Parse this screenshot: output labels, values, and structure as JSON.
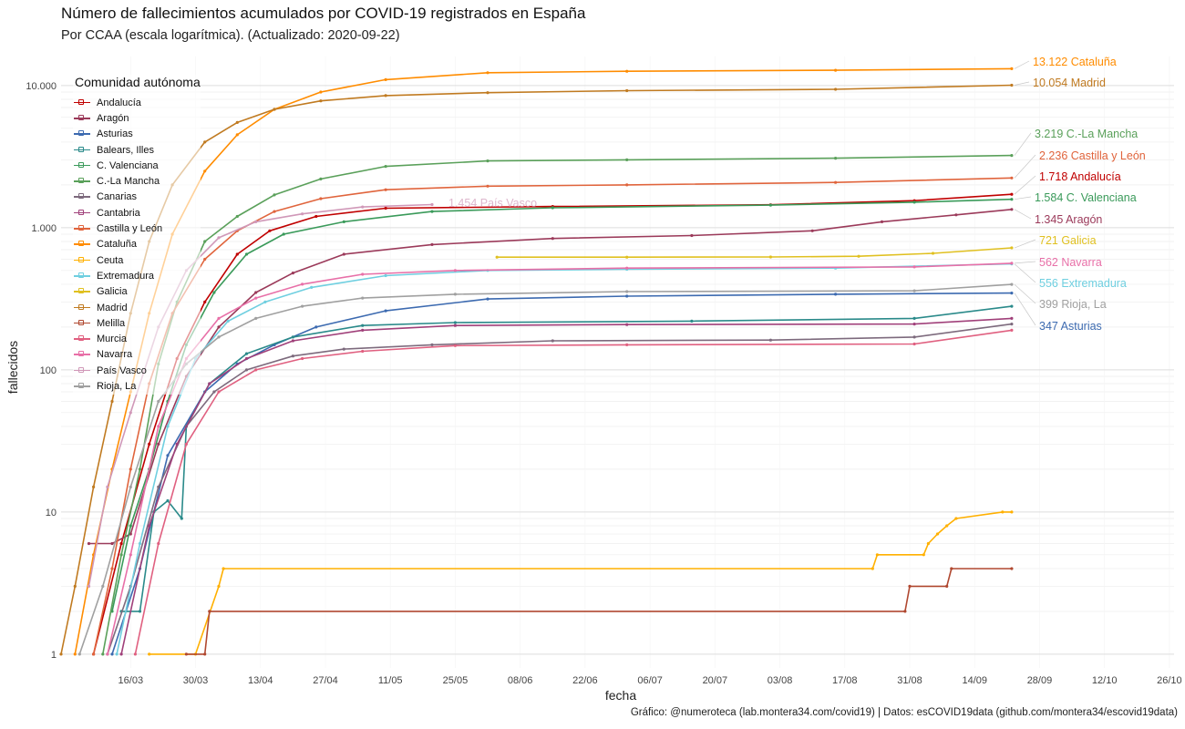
{
  "chart_data": {
    "type": "line",
    "title": "Número de fallecimientos acumulados por COVID-19 registrados en España",
    "subtitle": "Por CCAA (escala logarítmica). (Actualizado: 2020-09-22)",
    "xlabel": "fecha",
    "ylabel": "fallecidos",
    "caption": "Gráfico: @numeroteca (lab.montera34.com/covid19) | Datos: esCOVID19data (github.com/montera34/escovid19data)",
    "y_scale": "log10",
    "ylim": [
      0.8,
      16000
    ],
    "xlim": [
      "2020-03-01",
      "2020-10-27"
    ],
    "grid": true,
    "y_ticks": [
      {
        "value": 1,
        "label": "1"
      },
      {
        "value": 10,
        "label": "10"
      },
      {
        "value": 100,
        "label": "100"
      },
      {
        "value": 1000,
        "label": "1.000"
      },
      {
        "value": 10000,
        "label": "10.000"
      }
    ],
    "x_ticks": [
      {
        "date": "2020-03-16",
        "label": "16/03"
      },
      {
        "date": "2020-03-30",
        "label": "30/03"
      },
      {
        "date": "2020-04-13",
        "label": "13/04"
      },
      {
        "date": "2020-04-27",
        "label": "27/04"
      },
      {
        "date": "2020-05-11",
        "label": "11/05"
      },
      {
        "date": "2020-05-25",
        "label": "25/05"
      },
      {
        "date": "2020-06-08",
        "label": "08/06"
      },
      {
        "date": "2020-06-22",
        "label": "22/06"
      },
      {
        "date": "2020-07-06",
        "label": "06/07"
      },
      {
        "date": "2020-07-20",
        "label": "20/07"
      },
      {
        "date": "2020-08-03",
        "label": "03/08"
      },
      {
        "date": "2020-08-17",
        "label": "17/08"
      },
      {
        "date": "2020-08-31",
        "label": "31/08"
      },
      {
        "date": "2020-09-14",
        "label": "14/09"
      },
      {
        "date": "2020-09-28",
        "label": "28/09"
      },
      {
        "date": "2020-10-12",
        "label": "12/10"
      },
      {
        "date": "2020-10-26",
        "label": "26/10"
      }
    ],
    "legend_title": "Comunidad autónoma",
    "legend_position": "top-left",
    "series": [
      {
        "name": "Andalucía",
        "color": "#c00000",
        "label": "1.718 Andalucía",
        "x": [
          "2020-03-08",
          "2020-03-14",
          "2020-03-20",
          "2020-03-26",
          "2020-04-01",
          "2020-04-08",
          "2020-04-15",
          "2020-04-25",
          "2020-05-10",
          "2020-06-15",
          "2020-08-01",
          "2020-09-01",
          "2020-09-22"
        ],
        "y": [
          1,
          6,
          30,
          120,
          300,
          650,
          950,
          1200,
          1370,
          1410,
          1450,
          1550,
          1718
        ]
      },
      {
        "name": "Aragón",
        "color": "#9b3a5a",
        "label": "1.345 Aragón",
        "x": [
          "2020-03-07",
          "2020-03-12",
          "2020-03-16",
          "2020-03-22",
          "2020-03-28",
          "2020-04-04",
          "2020-04-12",
          "2020-04-20",
          "2020-05-01",
          "2020-05-20",
          "2020-06-15",
          "2020-07-15",
          "2020-08-10",
          "2020-08-25",
          "2020-09-10",
          "2020-09-22"
        ],
        "y": [
          6,
          6,
          7,
          30,
          90,
          200,
          350,
          480,
          650,
          760,
          840,
          880,
          950,
          1100,
          1230,
          1345
        ]
      },
      {
        "name": "Asturias",
        "color": "#3c6ab0",
        "label": "347 Asturias",
        "x": [
          "2020-03-12",
          "2020-03-18",
          "2020-03-24",
          "2020-04-01",
          "2020-04-08",
          "2020-04-16",
          "2020-04-25",
          "2020-05-10",
          "2020-06-01",
          "2020-07-01",
          "2020-08-15",
          "2020-09-22"
        ],
        "y": [
          1,
          4,
          25,
          70,
          110,
          150,
          200,
          260,
          315,
          330,
          340,
          347
        ]
      },
      {
        "name": "Balears, Illes",
        "color": "#2a8a8a",
        "label": "",
        "x": [
          "2020-03-14",
          "2020-03-18",
          "2020-03-21",
          "2020-03-24",
          "2020-03-27",
          "2020-03-28",
          "2020-04-02",
          "2020-04-10",
          "2020-04-20",
          "2020-05-05",
          "2020-05-25",
          "2020-07-15",
          "2020-09-01",
          "2020-09-22"
        ],
        "y": [
          2,
          2,
          10,
          12,
          9,
          40,
          80,
          130,
          170,
          205,
          215,
          220,
          230,
          280
        ]
      },
      {
        "name": "C. Valenciana",
        "color": "#3a9a5a",
        "label": "1.584 C. Valenciana",
        "x": [
          "2020-03-12",
          "2020-03-16",
          "2020-03-20",
          "2020-03-24",
          "2020-03-28",
          "2020-04-03",
          "2020-04-10",
          "2020-04-18",
          "2020-05-01",
          "2020-05-20",
          "2020-06-15",
          "2020-08-01",
          "2020-09-01",
          "2020-09-22"
        ],
        "y": [
          2,
          8,
          20,
          60,
          150,
          350,
          650,
          900,
          1100,
          1300,
          1380,
          1440,
          1510,
          1584
        ]
      },
      {
        "name": "C.-La Mancha",
        "color": "#5aa05a",
        "label": "3.219 C.-La Mancha",
        "x": [
          "2020-03-10",
          "2020-03-14",
          "2020-03-18",
          "2020-03-22",
          "2020-03-26",
          "2020-04-01",
          "2020-04-08",
          "2020-04-16",
          "2020-04-26",
          "2020-05-10",
          "2020-06-01",
          "2020-07-01",
          "2020-08-15",
          "2020-09-22"
        ],
        "y": [
          1,
          5,
          20,
          110,
          300,
          800,
          1200,
          1700,
          2200,
          2700,
          2950,
          3000,
          3080,
          3219
        ]
      },
      {
        "name": "Canarias",
        "color": "#7d6a7d",
        "label": "",
        "x": [
          "2020-03-11",
          "2020-03-16",
          "2020-03-22",
          "2020-03-28",
          "2020-04-03",
          "2020-04-10",
          "2020-04-20",
          "2020-05-01",
          "2020-05-20",
          "2020-06-15",
          "2020-08-01",
          "2020-09-01",
          "2020-09-22"
        ],
        "y": [
          1,
          3,
          15,
          40,
          70,
          100,
          125,
          140,
          150,
          160,
          162,
          170,
          210
        ]
      },
      {
        "name": "Cantabria",
        "color": "#a0407a",
        "label": "",
        "x": [
          "2020-03-14",
          "2020-03-20",
          "2020-03-26",
          "2020-04-02",
          "2020-04-10",
          "2020-04-20",
          "2020-05-05",
          "2020-05-25",
          "2020-07-01",
          "2020-09-01",
          "2020-09-22"
        ],
        "y": [
          1,
          8,
          30,
          80,
          120,
          160,
          190,
          205,
          208,
          210,
          230
        ]
      },
      {
        "name": "Castilla y León",
        "color": "#e0643c",
        "label": "2.236 Castilla y León",
        "x": [
          "2020-03-08",
          "2020-03-12",
          "2020-03-16",
          "2020-03-20",
          "2020-03-25",
          "2020-04-01",
          "2020-04-08",
          "2020-04-16",
          "2020-04-26",
          "2020-05-10",
          "2020-06-01",
          "2020-07-01",
          "2020-08-15",
          "2020-09-22"
        ],
        "y": [
          1,
          4,
          20,
          80,
          250,
          600,
          950,
          1300,
          1600,
          1850,
          1960,
          2000,
          2080,
          2236
        ]
      },
      {
        "name": "Cataluña",
        "color": "#ff8c00",
        "label": "13.122 Cataluña",
        "x": [
          "2020-03-04",
          "2020-03-08",
          "2020-03-12",
          "2020-03-16",
          "2020-03-20",
          "2020-03-25",
          "2020-04-01",
          "2020-04-08",
          "2020-04-16",
          "2020-04-26",
          "2020-05-10",
          "2020-06-01",
          "2020-07-01",
          "2020-08-15",
          "2020-09-22"
        ],
        "y": [
          1,
          5,
          20,
          70,
          250,
          900,
          2500,
          4500,
          6800,
          9000,
          11000,
          12300,
          12600,
          12800,
          13122
        ]
      },
      {
        "name": "Ceuta",
        "color": "#ffb000",
        "label": "",
        "x": [
          "2020-03-20",
          "2020-03-30",
          "2020-04-04",
          "2020-04-05",
          "2020-08-23",
          "2020-08-24",
          "2020-09-03",
          "2020-09-04",
          "2020-09-06",
          "2020-09-08",
          "2020-09-10",
          "2020-09-20",
          "2020-09-22"
        ],
        "y": [
          1,
          1,
          3,
          4,
          4,
          5,
          5,
          6,
          7,
          8,
          9,
          10,
          10
        ]
      },
      {
        "name": "Extremadura",
        "color": "#6fcfe0",
        "label": "556 Extremadura",
        "x": [
          "2020-03-13",
          "2020-03-18",
          "2020-03-24",
          "2020-03-30",
          "2020-04-06",
          "2020-04-14",
          "2020-04-24",
          "2020-05-10",
          "2020-06-01",
          "2020-07-01",
          "2020-08-15",
          "2020-09-22"
        ],
        "y": [
          1,
          6,
          40,
          120,
          220,
          300,
          380,
          460,
          500,
          510,
          520,
          556
        ]
      },
      {
        "name": "Galicia",
        "color": "#e0c020",
        "label": "721 Galicia",
        "x": [
          "2020-06-03",
          "2020-07-01",
          "2020-08-01",
          "2020-08-20",
          "2020-09-05",
          "2020-09-22"
        ],
        "y": [
          620,
          620,
          622,
          630,
          660,
          721
        ]
      },
      {
        "name": "Madrid",
        "color": "#c07a20",
        "label": "10.054 Madrid",
        "x": [
          "2020-03-01",
          "2020-03-04",
          "2020-03-08",
          "2020-03-12",
          "2020-03-16",
          "2020-03-20",
          "2020-03-25",
          "2020-04-01",
          "2020-04-08",
          "2020-04-16",
          "2020-04-26",
          "2020-05-10",
          "2020-06-01",
          "2020-07-01",
          "2020-08-15",
          "2020-09-22"
        ],
        "y": [
          1,
          3,
          15,
          60,
          250,
          800,
          2000,
          4000,
          5500,
          6800,
          7800,
          8500,
          8900,
          9200,
          9400,
          10054
        ]
      },
      {
        "name": "Melilla",
        "color": "#b04830",
        "label": "",
        "x": [
          "2020-03-28",
          "2020-04-01",
          "2020-04-02",
          "2020-08-30",
          "2020-08-31",
          "2020-09-08",
          "2020-09-09",
          "2020-09-22"
        ],
        "y": [
          1,
          1,
          2,
          2,
          3,
          3,
          4,
          4
        ]
      },
      {
        "name": "Murcia",
        "color": "#e06080",
        "label": "",
        "x": [
          "2020-03-17",
          "2020-03-22",
          "2020-03-28",
          "2020-04-04",
          "2020-04-12",
          "2020-04-22",
          "2020-05-05",
          "2020-05-25",
          "2020-07-01",
          "2020-09-01",
          "2020-09-22"
        ],
        "y": [
          1,
          6,
          30,
          70,
          100,
          120,
          135,
          148,
          150,
          152,
          190
        ]
      },
      {
        "name": "Navarra",
        "color": "#e870a8",
        "label": "562 Navarra",
        "x": [
          "2020-03-11",
          "2020-03-16",
          "2020-03-22",
          "2020-03-28",
          "2020-04-04",
          "2020-04-12",
          "2020-04-22",
          "2020-05-05",
          "2020-05-25",
          "2020-07-01",
          "2020-09-01",
          "2020-09-22"
        ],
        "y": [
          1,
          5,
          40,
          120,
          230,
          320,
          400,
          470,
          500,
          520,
          530,
          562
        ]
      },
      {
        "name": "País Vasco",
        "color": "#d098b8",
        "label": "1.454 País Vasco",
        "x": [
          "2020-03-07",
          "2020-03-11",
          "2020-03-16",
          "2020-03-22",
          "2020-03-28",
          "2020-04-04",
          "2020-04-12",
          "2020-04-22",
          "2020-05-05",
          "2020-05-20"
        ],
        "y": [
          3,
          15,
          50,
          200,
          500,
          850,
          1100,
          1250,
          1400,
          1454
        ]
      },
      {
        "name": "Rioja, La",
        "color": "#a0a0a0",
        "label": "399 Rioja, La",
        "x": [
          "2020-03-05",
          "2020-03-10",
          "2020-03-16",
          "2020-03-22",
          "2020-03-28",
          "2020-04-04",
          "2020-04-12",
          "2020-04-22",
          "2020-05-05",
          "2020-05-25",
          "2020-07-01",
          "2020-09-01",
          "2020-09-22"
        ],
        "y": [
          1,
          3,
          15,
          60,
          110,
          170,
          230,
          280,
          320,
          340,
          355,
          360,
          399
        ]
      }
    ]
  }
}
